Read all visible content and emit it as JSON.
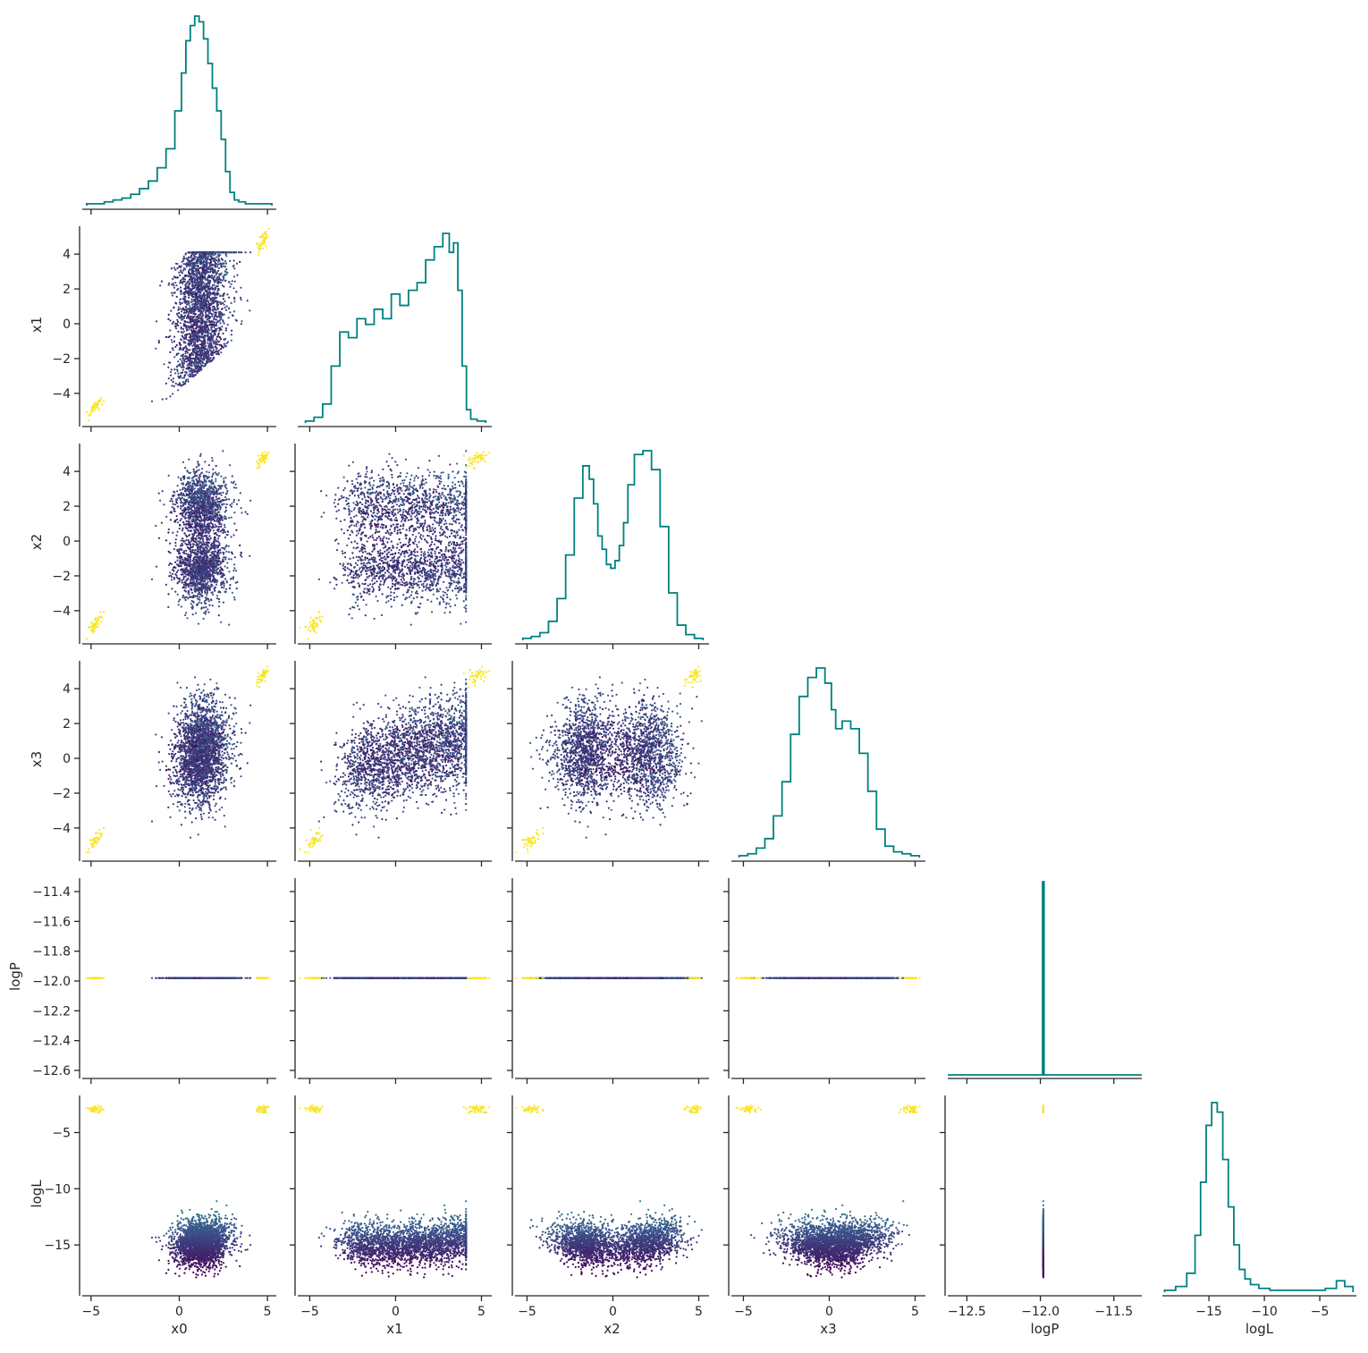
{
  "chart_data": {
    "type": "corner",
    "variables": [
      "x0",
      "x1",
      "x2",
      "x3",
      "logP",
      "logL"
    ],
    "axis_labels": [
      "x0",
      "x1",
      "x2",
      "x3",
      "logP",
      "logL"
    ],
    "colormap": [
      "#440154",
      "#3b528b",
      "#21918c",
      "#5ec962",
      "#fde725"
    ],
    "color_variable": "logL",
    "hist_color": "#008080",
    "ranges": {
      "x0": [
        -5.5,
        5.5
      ],
      "x1": [
        -5.7,
        5.6
      ],
      "x2": [
        -5.7,
        5.6
      ],
      "x3": [
        -5.7,
        5.6
      ],
      "logP": [
        -12.63,
        -11.31
      ],
      "logL": [
        -19.2,
        -1.7
      ]
    },
    "ticks": {
      "x0": [
        -5,
        0,
        5
      ],
      "x1": [
        -5,
        0,
        5
      ],
      "x2": [
        -5,
        0,
        5
      ],
      "x3": [
        -5,
        0,
        5
      ],
      "logP": [
        -12.5,
        -12.0,
        -11.5
      ],
      "logL": [
        -15,
        -10,
        -5
      ]
    },
    "y_ticks": {
      "x1": [
        -4,
        -2,
        0,
        2,
        4
      ],
      "x2": [
        -4,
        -2,
        0,
        2,
        4
      ],
      "x3": [
        -4,
        -2,
        0,
        2,
        4
      ],
      "logP": [
        -12.6,
        -12.4,
        -12.2,
        -12.0,
        -11.8,
        -11.6,
        -11.4
      ],
      "logL": [
        -15,
        -10,
        -5
      ]
    },
    "y_tick_labels": {
      "x1": [
        "−4",
        "−2",
        "0",
        "2",
        "4"
      ],
      "x2": [
        "−4",
        "−2",
        "0",
        "2",
        "4"
      ],
      "x3": [
        "−4",
        "−2",
        "0",
        "2",
        "4"
      ],
      "logP": [
        "−12.6",
        "−12.4",
        "−12.2",
        "−12.0",
        "−11.8",
        "−11.6",
        "−11.4"
      ],
      "logL": [
        "−15",
        "−10",
        "−5"
      ]
    },
    "x_tick_labels": {
      "x0": [
        "−5",
        "0",
        "5"
      ],
      "x1": [
        "−5",
        "0",
        "5"
      ],
      "x2": [
        "−5",
        "0",
        "5"
      ],
      "x3": [
        "−5",
        "0",
        "5"
      ],
      "logP": [
        "−12.5",
        "−12.0",
        "−11.5"
      ],
      "logL": [
        "−15",
        "−10",
        "−5"
      ]
    },
    "logP_value": -11.98,
    "histograms": {
      "x0": {
        "x": [
          -5.0,
          -4.5,
          -4.0,
          -3.5,
          -3.0,
          -2.5,
          -2.0,
          -1.5,
          -1.0,
          -0.5,
          0.0,
          0.25,
          0.5,
          0.75,
          1.0,
          1.25,
          1.5,
          1.75,
          2.0,
          2.25,
          2.5,
          2.75,
          3.0,
          3.25,
          3.5,
          4.0,
          4.5,
          5.0
        ],
        "y": [
          0.01,
          0.01,
          0.02,
          0.03,
          0.04,
          0.06,
          0.09,
          0.13,
          0.2,
          0.3,
          0.5,
          0.7,
          0.87,
          0.95,
          1.0,
          0.97,
          0.88,
          0.75,
          0.62,
          0.5,
          0.35,
          0.18,
          0.07,
          0.03,
          0.02,
          0.01,
          0.01,
          0.01
        ]
      },
      "x1": {
        "x": [
          -5.0,
          -4.5,
          -4.0,
          -3.5,
          -3.0,
          -2.5,
          -2.0,
          -1.5,
          -1.0,
          -0.5,
          0.0,
          0.5,
          1.0,
          1.5,
          2.0,
          2.5,
          3.0,
          3.25,
          3.5,
          3.75,
          4.0,
          4.25,
          4.5,
          5.0
        ],
        "y": [
          0.01,
          0.03,
          0.1,
          0.3,
          0.48,
          0.45,
          0.55,
          0.52,
          0.6,
          0.55,
          0.68,
          0.62,
          0.7,
          0.74,
          0.86,
          0.93,
          1.0,
          0.9,
          0.95,
          0.7,
          0.3,
          0.07,
          0.02,
          0.01
        ]
      },
      "x2": {
        "x": [
          -5.0,
          -4.5,
          -4.0,
          -3.5,
          -3.0,
          -2.5,
          -2.0,
          -1.5,
          -1.25,
          -1.0,
          -0.75,
          -0.5,
          -0.25,
          0.0,
          0.25,
          0.5,
          0.75,
          1.0,
          1.5,
          2.0,
          2.5,
          3.0,
          3.5,
          4.0,
          4.5,
          5.0
        ],
        "y": [
          0.01,
          0.02,
          0.04,
          0.1,
          0.22,
          0.45,
          0.75,
          0.92,
          0.85,
          0.72,
          0.55,
          0.48,
          0.4,
          0.38,
          0.42,
          0.5,
          0.62,
          0.82,
          0.98,
          1.0,
          0.9,
          0.6,
          0.25,
          0.08,
          0.03,
          0.01
        ]
      },
      "x3": {
        "x": [
          -5.0,
          -4.5,
          -4.0,
          -3.5,
          -3.0,
          -2.5,
          -2.0,
          -1.5,
          -1.0,
          -0.5,
          0.0,
          0.25,
          0.5,
          1.0,
          1.5,
          2.0,
          2.5,
          3.0,
          3.5,
          4.0,
          4.5,
          5.0
        ],
        "y": [
          0.01,
          0.02,
          0.05,
          0.1,
          0.22,
          0.4,
          0.65,
          0.85,
          0.95,
          1.0,
          0.92,
          0.78,
          0.68,
          0.72,
          0.68,
          0.55,
          0.35,
          0.15,
          0.06,
          0.03,
          0.02,
          0.01
        ]
      },
      "logP": {
        "x": [
          -11.985,
          -11.975
        ],
        "y": [
          1.0,
          1.0
        ]
      },
      "logL": {
        "x": [
          -18.5,
          -17.5,
          -16.5,
          -16.0,
          -15.5,
          -15.0,
          -14.5,
          -14.0,
          -13.5,
          -13.0,
          -12.5,
          -12.0,
          -11.5,
          -11.0,
          -10.0,
          -9.0,
          -8.0,
          -7.0,
          -6.0,
          -5.0,
          -4.0,
          -3.0,
          -2.5
        ],
        "y": [
          0.01,
          0.03,
          0.1,
          0.3,
          0.58,
          0.88,
          1.0,
          0.95,
          0.7,
          0.45,
          0.25,
          0.12,
          0.07,
          0.04,
          0.02,
          0.01,
          0.01,
          0.01,
          0.01,
          0.01,
          0.02,
          0.06,
          0.03
        ]
      }
    }
  }
}
